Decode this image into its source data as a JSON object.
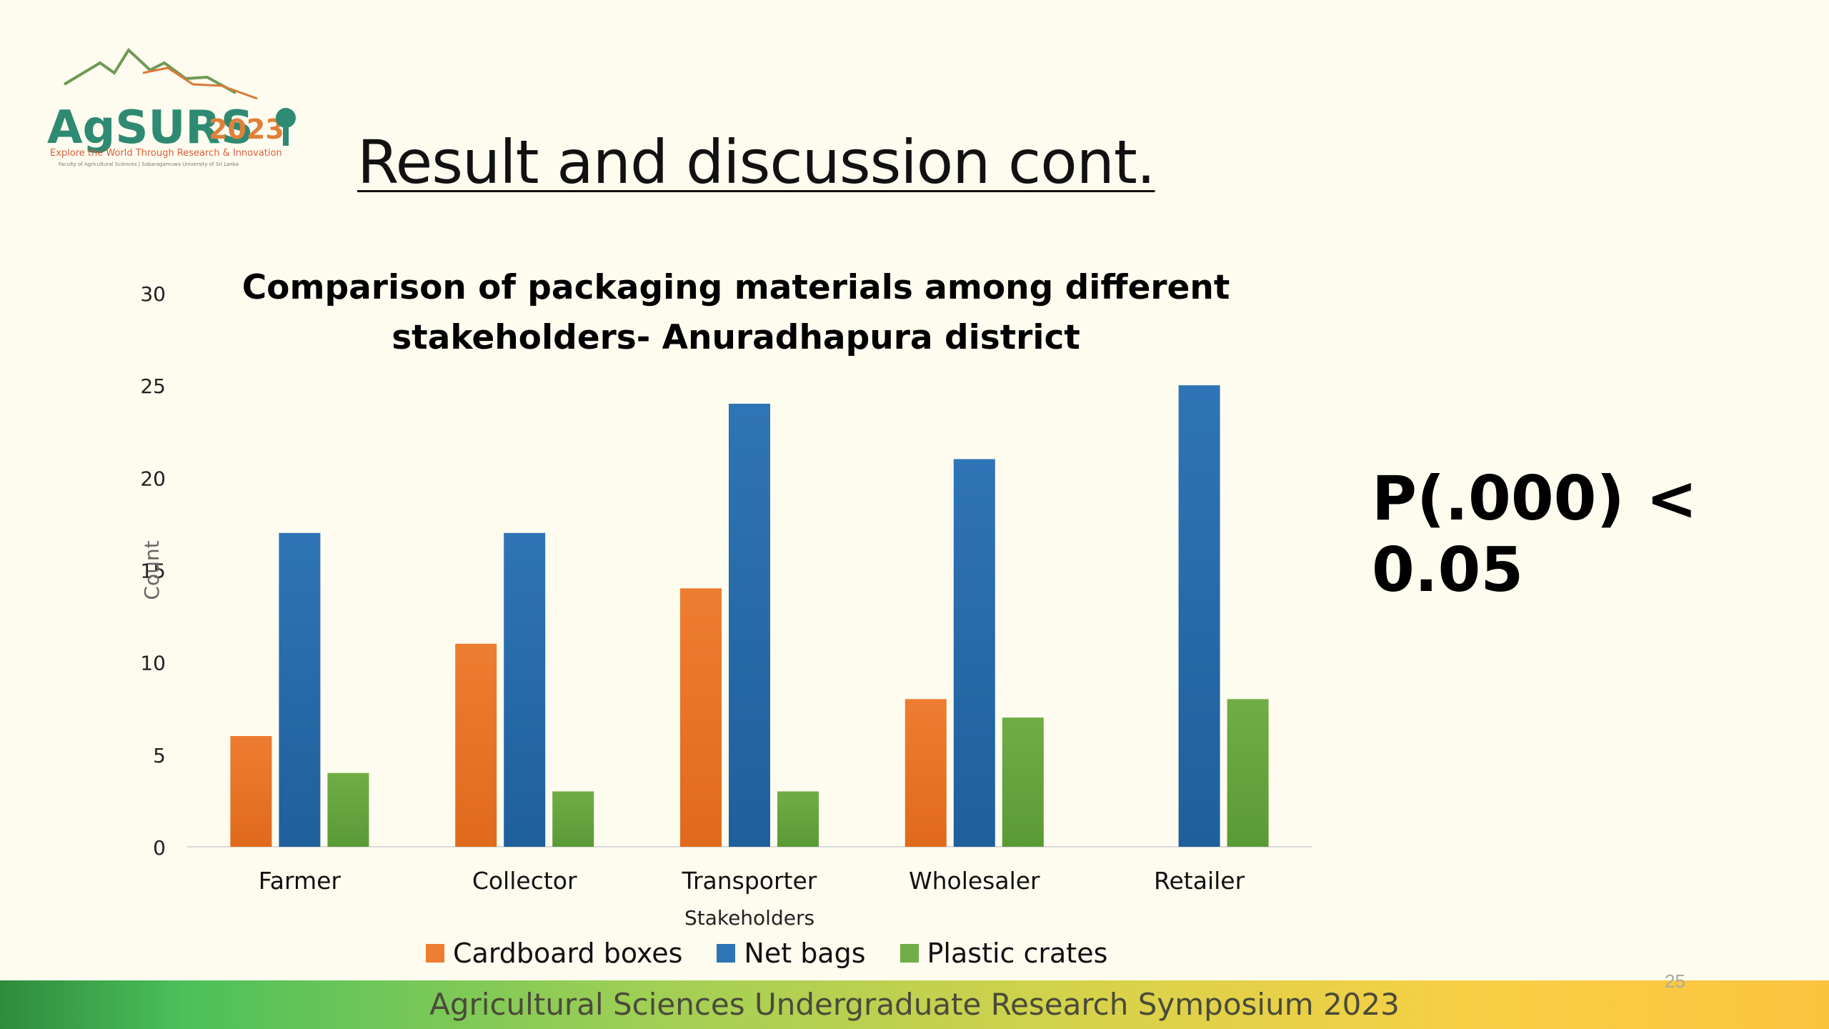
{
  "logo": {
    "name": "AgSURS",
    "year": "2023",
    "tagline": "Explore the World Through Research & Innovation",
    "subline": "Faculty of Agricultural Sciences | Sabaragamuwa University of Sri Lanka"
  },
  "slide": {
    "title": "Result and discussion cont.",
    "pvalue": "P(.000) < 0.05",
    "page_number": "25"
  },
  "footer": {
    "text": "Agricultural Sciences Undergraduate Research Symposium 2023"
  },
  "colors": {
    "cardboard": "#ed7d31",
    "netbags": "#2e75b6",
    "plastic": "#70ad47"
  },
  "chart_data": {
    "type": "bar",
    "title_line1": "Comparison of packaging materials among different",
    "title_line2": "stakeholders- Anuradhapura district",
    "xlabel": "Stakeholders",
    "ylabel": "Count",
    "ylim": [
      0,
      30
    ],
    "yticks": [
      0,
      5,
      10,
      15,
      20,
      25,
      30
    ],
    "categories": [
      "Farmer",
      "Collector",
      "Transporter",
      "Wholesaler",
      "Retailer"
    ],
    "series": [
      {
        "name": "Cardboard boxes",
        "values": [
          6,
          11,
          14,
          8,
          0
        ]
      },
      {
        "name": "Net bags",
        "values": [
          17,
          17,
          24,
          21,
          25
        ]
      },
      {
        "name": "Plastic crates",
        "values": [
          4,
          3,
          3,
          7,
          8
        ]
      }
    ],
    "legend_position": "bottom",
    "grid": false
  }
}
